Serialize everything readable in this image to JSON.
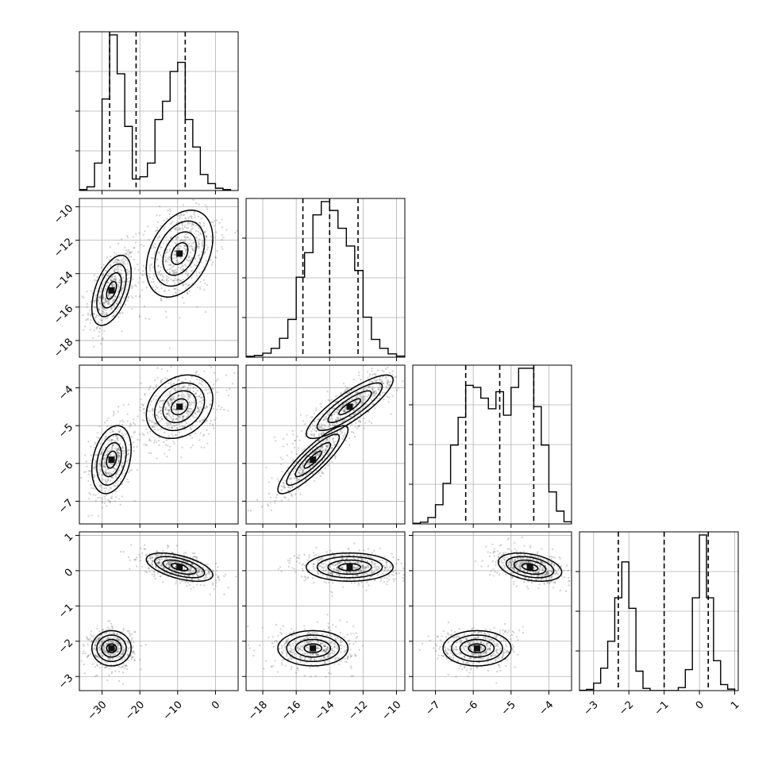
{
  "chart_data": {
    "type": "corner",
    "parameters": [
      {
        "key": "p1",
        "label": "",
        "range": [
          -36,
          6
        ],
        "ticks": [
          -30,
          -20,
          -10,
          0
        ],
        "tick_labels": [
          "−30",
          "−20",
          "−10",
          "0"
        ],
        "quantiles": [
          -28.0,
          -21.0,
          -8.0
        ],
        "hist": {
          "edges": [
            -36,
            -34,
            -32,
            -30,
            -28,
            -26,
            -24,
            -22,
            -20,
            -18,
            -16,
            -14,
            -12,
            -10,
            -8,
            -6,
            -4,
            -2,
            0,
            2,
            4
          ],
          "counts": [
            2,
            8,
            60,
            200,
            340,
            255,
            140,
            25,
            30,
            60,
            155,
            195,
            260,
            280,
            155,
            95,
            35,
            15,
            5,
            2
          ]
        }
      },
      {
        "key": "p2",
        "label": "",
        "range": [
          -19,
          -9.5
        ],
        "ticks": [
          -18,
          -16,
          -14,
          -12,
          -10
        ],
        "tick_labels": [
          "−18",
          "−16",
          "−14",
          "−12",
          "−10"
        ],
        "quantiles": [
          -15.6,
          -14.0,
          -12.3
        ],
        "hist": {
          "edges": [
            -19,
            -18.5,
            -18,
            -17.5,
            -17,
            -16.5,
            -16,
            -15.5,
            -15,
            -14.5,
            -14,
            -13.5,
            -13,
            -12.5,
            -12,
            -11.5,
            -11,
            -10.5,
            -10,
            -9.5
          ],
          "counts": [
            4,
            8,
            18,
            40,
            85,
            170,
            360,
            470,
            640,
            700,
            660,
            580,
            500,
            390,
            180,
            80,
            40,
            15,
            5
          ]
        }
      },
      {
        "key": "p3",
        "label": "",
        "range": [
          -7.6,
          -3.4
        ],
        "ticks": [
          -7,
          -6,
          -5,
          -4
        ],
        "tick_labels": [
          "−7",
          "−6",
          "−5",
          "−4"
        ],
        "quantiles": [
          -6.2,
          -5.3,
          -4.4
        ],
        "hist": {
          "edges": [
            -7.6,
            -7.4,
            -7.2,
            -7.0,
            -6.8,
            -6.6,
            -6.4,
            -6.2,
            -6.0,
            -5.8,
            -5.6,
            -5.4,
            -5.2,
            -5.0,
            -4.8,
            -4.6,
            -4.4,
            -4.2,
            -4.0,
            -3.8,
            -3.6,
            -3.4
          ],
          "counts": [
            3,
            8,
            30,
            90,
            190,
            370,
            500,
            650,
            640,
            590,
            540,
            620,
            510,
            640,
            730,
            730,
            550,
            370,
            150,
            60,
            10
          ]
        }
      },
      {
        "key": "p4",
        "label": "",
        "range": [
          -3.4,
          1.1
        ],
        "ticks": [
          -3,
          -2,
          -1,
          0,
          1
        ],
        "tick_labels": [
          "−3",
          "−2",
          "−1",
          "0",
          "1"
        ],
        "quantiles": [
          -2.3,
          -1.0,
          0.25
        ],
        "hist": {
          "edges": [
            -3.4,
            -3.2,
            -3.0,
            -2.8,
            -2.6,
            -2.4,
            -2.2,
            -2.0,
            -1.8,
            -1.6,
            -1.4,
            -1.2,
            -1.0,
            -0.8,
            -0.6,
            -0.4,
            -0.2,
            0.0,
            0.2,
            0.4,
            0.6,
            0.8,
            1.0
          ],
          "counts": [
            2,
            8,
            50,
            150,
            330,
            620,
            860,
            550,
            130,
            15,
            0,
            0,
            0,
            0,
            20,
            140,
            620,
            1040,
            620,
            200,
            40,
            10
          ]
        }
      }
    ],
    "y_ticks": {
      "p2": {
        "ticks": [
          -18,
          -16,
          -14,
          -12,
          -10
        ],
        "tick_labels": [
          "−18",
          "−16",
          "−14",
          "−12",
          "−10"
        ]
      },
      "p3": {
        "ticks": [
          -7,
          -6,
          -5,
          -4
        ],
        "tick_labels": [
          "−7",
          "−6",
          "−5",
          "−4"
        ]
      },
      "p4": {
        "ticks": [
          -3,
          -2,
          -1,
          0,
          1
        ],
        "tick_labels": [
          "−3",
          "−2",
          "−1",
          "0",
          "1"
        ]
      }
    },
    "modes": [
      {
        "weight": 0.45,
        "mean": {
          "p1": -27.5,
          "p2": -15.0,
          "p3": -5.9,
          "p4": -2.2
        },
        "sd": {
          "p1": 2.6,
          "p2": 1.05,
          "p3": 0.45,
          "p4": 0.25
        },
        "corr": {
          "p1_p2": 0.5,
          "p1_p3": 0.3,
          "p2_p3": 0.88,
          "p1_p4": 0.0,
          "p2_p4": 0.0,
          "p3_p4": 0.0
        }
      },
      {
        "weight": 0.55,
        "mean": {
          "p1": -9.5,
          "p2": -12.8,
          "p3": -4.5,
          "p4": 0.1
        },
        "sd": {
          "p1": 4.4,
          "p2": 1.3,
          "p3": 0.42,
          "p4": 0.2
        },
        "corr": {
          "p1_p2": 0.35,
          "p1_p3": 0.25,
          "p2_p3": 0.85,
          "p1_p4": -0.55,
          "p2_p4": 0.0,
          "p3_p4": -0.35
        }
      }
    ],
    "contour_levels_sigma": [
      0.5,
      1.0,
      1.5,
      2.0
    ],
    "grid": true,
    "legend": "none"
  }
}
